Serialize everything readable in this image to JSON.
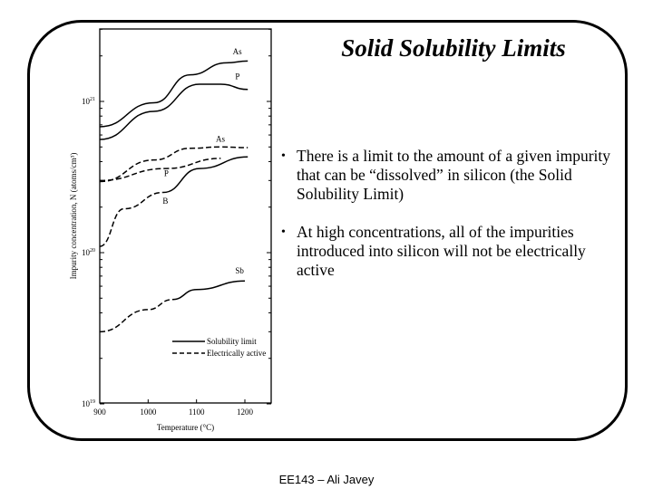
{
  "slide": {
    "title": "Solid Solubility Limits",
    "bullets": [
      "There is a limit to the amount of a given impurity that can be “dissolved” in silicon (the Solid Solubility Limit)",
      "At high concentrations, all of the impurities introduced into silicon will not be electrically active"
    ],
    "footer": "EE143 – Ali Javey"
  },
  "chart_data": {
    "type": "line",
    "xlabel": "Temperature (°C)",
    "ylabel": "Impurity concentration, N (atoms/cm³)",
    "xlim": [
      900,
      1255
    ],
    "ylim": [
      1e+19,
      3e+21
    ],
    "yscale": "log",
    "xticks": [
      "900",
      "1000",
      "1100",
      "1200"
    ],
    "yticks": [
      {
        "base": "10",
        "exp": "19"
      },
      {
        "base": "10",
        "exp": "20"
      },
      {
        "base": "10",
        "exp": "21"
      }
    ],
    "legend": {
      "placement": "lower-right",
      "entries": [
        {
          "label": "Solubility limit",
          "style": "solid"
        },
        {
          "label": "Electrically active",
          "style": "dashed"
        }
      ]
    },
    "series": [
      {
        "label": "As",
        "style": "solid",
        "x": [
          900,
          1012,
          1087,
          1162,
          1206
        ],
        "y": [
          6.8e+20,
          9.8e+20,
          1.5e+21,
          1.8e+21,
          1.85e+21
        ]
      },
      {
        "label": "P",
        "style": "solid",
        "x": [
          900,
          1012,
          1106,
          1150,
          1206
        ],
        "y": [
          5.6e+20,
          8.6e+20,
          1.3e+21,
          1.3e+21,
          1.2e+21
        ]
      },
      {
        "label": "As",
        "style": "dashed",
        "x": [
          900,
          1012,
          1087,
          1150,
          1206
        ],
        "y": [
          2.95e+20,
          4.1e+20,
          4.9e+20,
          5e+20,
          4.95e+20
        ]
      },
      {
        "label": "P",
        "style": "dashed",
        "x": [
          900,
          1037,
          1150
        ],
        "y": [
          3e+20,
          3.6e+20,
          4.2e+20
        ]
      },
      {
        "label": "B",
        "style": "mixed",
        "dashed_until": 1031,
        "x": [
          900,
          950,
          1031,
          1106,
          1206
        ],
        "y": [
          1.1e+20,
          1.95e+20,
          2.5e+20,
          3.6e+20,
          4.3e+20
        ]
      },
      {
        "label": "Sb",
        "style": "mixed",
        "dashed_until": 1050,
        "x": [
          900,
          1000,
          1050,
          1100,
          1200
        ],
        "y": [
          3e+19,
          4.2e+19,
          4.9e+19,
          5.7e+19,
          6.5e+19
        ]
      }
    ],
    "colors": {
      "line": "#000000",
      "frame": "#000000"
    }
  }
}
